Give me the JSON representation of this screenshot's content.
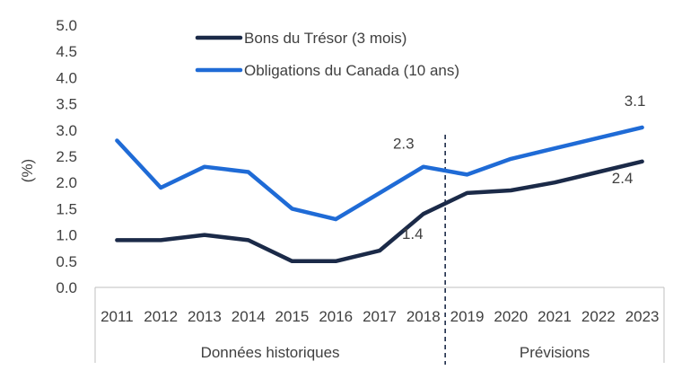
{
  "chart_data": {
    "type": "line",
    "title": "",
    "xlabel": "",
    "ylabel": "(%)",
    "ylim": [
      0,
      5
    ],
    "yticks": [
      "0.0",
      "0.5",
      "1.0",
      "1.5",
      "2.0",
      "2.5",
      "3.0",
      "3.5",
      "4.0",
      "4.5",
      "5.0"
    ],
    "grid": false,
    "legend_position": "top-center",
    "categories": [
      "2011",
      "2012",
      "2013",
      "2014",
      "2015",
      "2016",
      "2017",
      "2018",
      "2019",
      "2020",
      "2021",
      "2022",
      "2023"
    ],
    "groups": [
      {
        "label": "Données historiques",
        "from": "2011",
        "to": "2018"
      },
      {
        "label": "Prévisions",
        "from": "2019",
        "to": "2023"
      }
    ],
    "series": [
      {
        "name": "Bons du Trésor (3 mois)",
        "color": "#1b2a48",
        "values": [
          0.9,
          0.9,
          1.0,
          0.9,
          0.5,
          0.5,
          0.7,
          1.4,
          1.8,
          1.85,
          2.0,
          2.2,
          2.4
        ]
      },
      {
        "name": "Obligations du Canada (10 ans)",
        "color": "#1f6bd6",
        "values": [
          2.8,
          1.9,
          2.3,
          2.2,
          1.5,
          1.3,
          1.8,
          2.3,
          2.15,
          2.45,
          2.65,
          2.85,
          3.05
        ]
      }
    ],
    "annotations": [
      {
        "series": 1,
        "index": 7,
        "text": "2.3"
      },
      {
        "series": 0,
        "index": 7,
        "text": "1.4"
      },
      {
        "series": 1,
        "index": 12,
        "text": "3.1"
      },
      {
        "series": 0,
        "index": 12,
        "text": "2.4"
      }
    ]
  }
}
